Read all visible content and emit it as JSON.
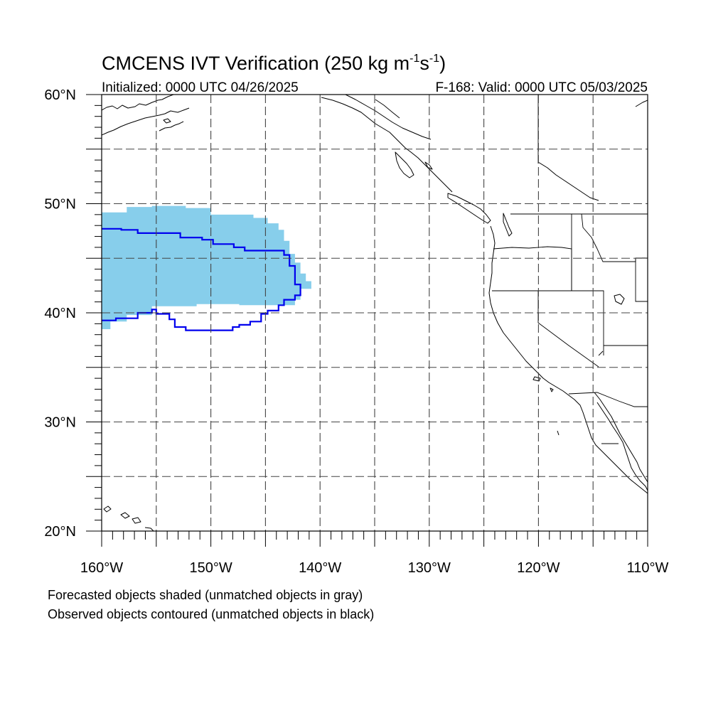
{
  "title": {
    "text_a": "CMCENS IVT Verification (250 kg m",
    "sup1": "-1",
    "text_b": "s",
    "sup2": "-1",
    "text_c": ")"
  },
  "subtitle_left": "Initialized: 0000 UTC 04/26/2025",
  "subtitle_right": "F-168: Valid: 0000 UTC 05/03/2025",
  "lat_labels": [
    "20°N",
    "30°N",
    "40°N",
    "50°N",
    "60°N"
  ],
  "lat_values": [
    20,
    30,
    40,
    50,
    60
  ],
  "lon_labels": [
    "160°W",
    "150°W",
    "140°W",
    "130°W",
    "120°W",
    "110°W"
  ],
  "lon_values": [
    -160,
    -150,
    -140,
    -130,
    -120,
    -110
  ],
  "extent": {
    "lon_min": -160,
    "lon_max": -110,
    "lat_min": 20,
    "lat_max": 60
  },
  "grid_interval_deg": 5,
  "footnote_1": "Forecasted objects shaded (unmatched objects in gray)",
  "footnote_2": "Observed objects contoured (unmatched objects in black)",
  "colors": {
    "forecast_fill": "#87ceeb",
    "observed_contour": "#0000ee",
    "coastline": "#000000",
    "grid": "#444444"
  },
  "forecast_object": [
    [
      -160,
      49.2
    ],
    [
      -157.7,
      49.2
    ],
    [
      -157.7,
      49.7
    ],
    [
      -155.4,
      49.7
    ],
    [
      -155.4,
      49.8
    ],
    [
      -152.3,
      49.8
    ],
    [
      -152.3,
      49.6
    ],
    [
      -150.0,
      49.6
    ],
    [
      -150.0,
      49.0
    ],
    [
      -146.1,
      49.0
    ],
    [
      -146.1,
      48.7
    ],
    [
      -144.8,
      48.7
    ],
    [
      -144.8,
      48.2
    ],
    [
      -143.8,
      48.2
    ],
    [
      -143.8,
      47.6
    ],
    [
      -143.3,
      47.6
    ],
    [
      -143.3,
      46.6
    ],
    [
      -142.8,
      46.6
    ],
    [
      -142.8,
      45.4
    ],
    [
      -142.3,
      45.4
    ],
    [
      -142.3,
      44.6
    ],
    [
      -141.8,
      44.6
    ],
    [
      -141.8,
      43.6
    ],
    [
      -141.3,
      43.6
    ],
    [
      -141.3,
      42.9
    ],
    [
      -140.8,
      42.9
    ],
    [
      -140.8,
      42.2
    ],
    [
      -141.8,
      42.2
    ],
    [
      -141.8,
      41.2
    ],
    [
      -142.3,
      41.2
    ],
    [
      -142.3,
      40.7
    ],
    [
      -147.4,
      40.7
    ],
    [
      -147.4,
      40.8
    ],
    [
      -151.3,
      40.8
    ],
    [
      -151.3,
      40.6
    ],
    [
      -155.4,
      40.6
    ],
    [
      -155.4,
      39.8
    ],
    [
      -157.7,
      39.8
    ],
    [
      -157.7,
      39.2
    ],
    [
      -159.2,
      39.2
    ],
    [
      -159.2,
      38.5
    ],
    [
      -160,
      38.5
    ]
  ],
  "observed_object": [
    [
      -160,
      47.7
    ],
    [
      -158.2,
      47.7
    ],
    [
      -158.2,
      47.6
    ],
    [
      -156.7,
      47.6
    ],
    [
      -156.7,
      47.3
    ],
    [
      -152.8,
      47.3
    ],
    [
      -152.8,
      46.9
    ],
    [
      -150.8,
      46.9
    ],
    [
      -150.8,
      46.7
    ],
    [
      -149.8,
      46.7
    ],
    [
      -149.8,
      46.3
    ],
    [
      -147.9,
      46.3
    ],
    [
      -147.9,
      46.0
    ],
    [
      -146.9,
      46.0
    ],
    [
      -146.9,
      45.7
    ],
    [
      -143.3,
      45.7
    ],
    [
      -143.3,
      45.3
    ],
    [
      -142.8,
      45.3
    ],
    [
      -142.8,
      44.3
    ],
    [
      -142.3,
      44.3
    ],
    [
      -142.3,
      42.6
    ],
    [
      -141.8,
      42.6
    ],
    [
      -141.8,
      41.6
    ],
    [
      -142.3,
      41.6
    ],
    [
      -142.3,
      41.2
    ],
    [
      -143.3,
      41.2
    ],
    [
      -143.3,
      40.7
    ],
    [
      -143.8,
      40.7
    ],
    [
      -143.8,
      40.2
    ],
    [
      -144.8,
      40.2
    ],
    [
      -144.8,
      39.9
    ],
    [
      -145.4,
      39.9
    ],
    [
      -145.4,
      39.2
    ],
    [
      -146.4,
      39.2
    ],
    [
      -146.4,
      38.9
    ],
    [
      -147.4,
      38.9
    ],
    [
      -147.4,
      38.7
    ],
    [
      -148.0,
      38.7
    ],
    [
      -148.0,
      38.4
    ],
    [
      -152.3,
      38.4
    ],
    [
      -152.3,
      38.7
    ],
    [
      -153.3,
      38.7
    ],
    [
      -153.3,
      39.4
    ],
    [
      -153.8,
      39.4
    ],
    [
      -153.8,
      39.9
    ],
    [
      -155.0,
      39.9
    ],
    [
      -155.0,
      40.3
    ],
    [
      -155.4,
      40.3
    ],
    [
      -155.4,
      40.0
    ],
    [
      -156.7,
      40.0
    ],
    [
      -156.7,
      39.5
    ],
    [
      -158.7,
      39.5
    ],
    [
      -158.7,
      39.3
    ],
    [
      -160,
      39.3
    ]
  ]
}
